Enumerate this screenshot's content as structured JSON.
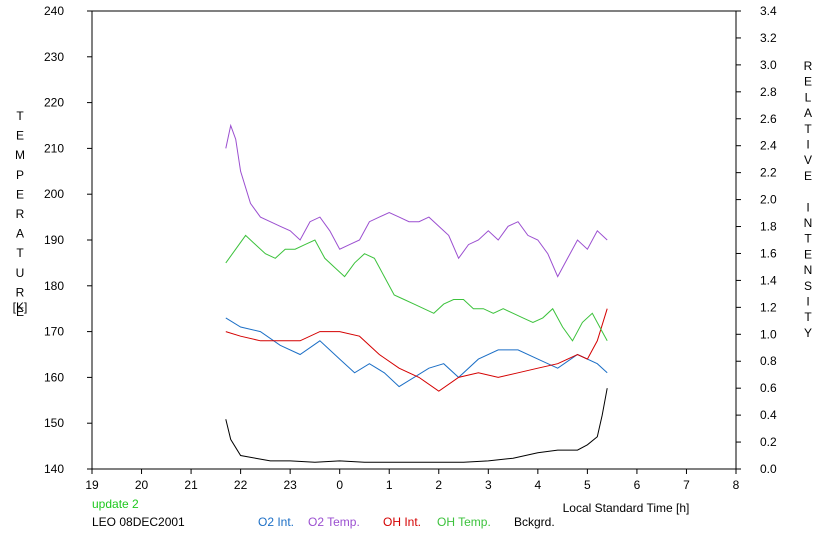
{
  "chart_data": {
    "type": "line",
    "xlabel": "Local Standard Time [h]",
    "ylabel_left": "TEMPERATURE",
    "ylabel_left_unit": "[K]",
    "ylabel_right": "RELATIVE INTENSITY",
    "x_ticks": [
      "19",
      "20",
      "21",
      "22",
      "23",
      "0",
      "1",
      "2",
      "3",
      "4",
      "5",
      "6",
      "7",
      "8"
    ],
    "x_tick_values": [
      19,
      20,
      21,
      22,
      23,
      24,
      25,
      26,
      27,
      28,
      29,
      30,
      31,
      32
    ],
    "xlim": [
      19,
      32
    ],
    "ylim_left": [
      140,
      240
    ],
    "left_ticks": [
      "140",
      "150",
      "160",
      "170",
      "180",
      "190",
      "200",
      "210",
      "220",
      "230",
      "240"
    ],
    "left_tick_values": [
      140,
      150,
      160,
      170,
      180,
      190,
      200,
      210,
      220,
      230,
      240
    ],
    "ylim_right": [
      0.0,
      3.4
    ],
    "right_ticks": [
      "0.0",
      "0.2",
      "0.4",
      "0.6",
      "0.8",
      "1.0",
      "1.2",
      "1.4",
      "1.6",
      "1.8",
      "2.0",
      "2.2",
      "2.4",
      "2.6",
      "2.8",
      "3.0",
      "3.2",
      "3.4"
    ],
    "right_tick_values": [
      0.0,
      0.2,
      0.4,
      0.6,
      0.8,
      1.0,
      1.2,
      1.4,
      1.6,
      1.8,
      2.0,
      2.2,
      2.4,
      2.6,
      2.8,
      3.0,
      3.2,
      3.4
    ],
    "grid": false,
    "series": [
      {
        "name": "O2 Int.",
        "color": "#1c6fc6",
        "axis": "left",
        "x": [
          21.7,
          22.0,
          22.4,
          22.8,
          23.2,
          23.6,
          24.0,
          24.3,
          24.6,
          24.9,
          25.2,
          25.5,
          25.8,
          26.1,
          26.4,
          26.8,
          27.2,
          27.6,
          28.0,
          28.4,
          28.8,
          29.2,
          29.4
        ],
        "y": [
          173,
          171,
          170,
          167,
          165,
          168,
          164,
          161,
          163,
          161,
          158,
          160,
          162,
          163,
          160,
          164,
          166,
          166,
          164,
          162,
          165,
          163,
          161
        ]
      },
      {
        "name": "O2 Temp.",
        "color": "#9b4fd0",
        "axis": "left",
        "x": [
          21.7,
          21.8,
          21.9,
          22.0,
          22.2,
          22.4,
          22.6,
          22.8,
          23.0,
          23.2,
          23.4,
          23.6,
          23.8,
          24.0,
          24.2,
          24.4,
          24.6,
          24.8,
          25.0,
          25.2,
          25.4,
          25.6,
          25.8,
          26.0,
          26.2,
          26.4,
          26.6,
          26.8,
          27.0,
          27.2,
          27.4,
          27.6,
          27.8,
          28.0,
          28.2,
          28.4,
          28.6,
          28.8,
          29.0,
          29.2,
          29.4
        ],
        "y": [
          210,
          215,
          212,
          205,
          198,
          195,
          194,
          193,
          192,
          190,
          194,
          195,
          192,
          188,
          189,
          190,
          194,
          195,
          196,
          195,
          194,
          194,
          195,
          193,
          191,
          186,
          189,
          190,
          192,
          190,
          193,
          194,
          191,
          190,
          187,
          182,
          186,
          190,
          188,
          192,
          190
        ]
      },
      {
        "name": "OH Int.",
        "color": "#d40000",
        "axis": "left",
        "x": [
          21.7,
          22.0,
          22.4,
          22.8,
          23.2,
          23.6,
          24.0,
          24.4,
          24.8,
          25.2,
          25.6,
          26.0,
          26.4,
          26.8,
          27.2,
          27.6,
          28.0,
          28.4,
          28.8,
          29.0,
          29.2,
          29.4
        ],
        "y": [
          170,
          169,
          168,
          168,
          168,
          170,
          170,
          169,
          165,
          162,
          160,
          157,
          160,
          161,
          160,
          161,
          162,
          163,
          165,
          164,
          168,
          175
        ]
      },
      {
        "name": "OH Temp.",
        "color": "#3cc23c",
        "axis": "left",
        "x": [
          21.7,
          21.9,
          22.1,
          22.3,
          22.5,
          22.7,
          22.9,
          23.1,
          23.3,
          23.5,
          23.7,
          23.9,
          24.1,
          24.3,
          24.5,
          24.7,
          24.9,
          25.1,
          25.3,
          25.5,
          25.7,
          25.9,
          26.1,
          26.3,
          26.5,
          26.7,
          26.9,
          27.1,
          27.3,
          27.5,
          27.7,
          27.9,
          28.1,
          28.3,
          28.5,
          28.7,
          28.9,
          29.1,
          29.3,
          29.4
        ],
        "y": [
          185,
          188,
          191,
          189,
          187,
          186,
          188,
          188,
          189,
          190,
          186,
          184,
          182,
          185,
          187,
          186,
          182,
          178,
          177,
          176,
          175,
          174,
          176,
          177,
          177,
          175,
          175,
          174,
          175,
          174,
          173,
          172,
          173,
          175,
          171,
          168,
          172,
          174,
          170,
          168
        ]
      },
      {
        "name": "Bckgrd.",
        "color": "#000000",
        "axis": "right",
        "x": [
          21.7,
          21.8,
          22.0,
          22.3,
          22.6,
          23.0,
          23.5,
          24.0,
          24.5,
          25.0,
          25.5,
          26.0,
          26.5,
          27.0,
          27.5,
          28.0,
          28.4,
          28.8,
          29.0,
          29.2,
          29.3,
          29.4
        ],
        "y": [
          0.37,
          0.22,
          0.1,
          0.08,
          0.06,
          0.06,
          0.05,
          0.06,
          0.05,
          0.05,
          0.05,
          0.05,
          0.05,
          0.06,
          0.08,
          0.12,
          0.14,
          0.14,
          0.18,
          0.24,
          0.4,
          0.6
        ]
      }
    ]
  },
  "footer": {
    "update": "update 2",
    "station": "LEO 08DEC2001",
    "legend": [
      "O2 Int.",
      "O2 Temp.",
      "OH Int.",
      "OH Temp.",
      "Bckgrd."
    ]
  },
  "colors": {
    "o2_int": "#1c6fc6",
    "o2_temp": "#9b4fd0",
    "oh_int": "#d40000",
    "oh_temp": "#3cc23c",
    "bckgrd": "#000000",
    "update": "#1ec81e"
  }
}
